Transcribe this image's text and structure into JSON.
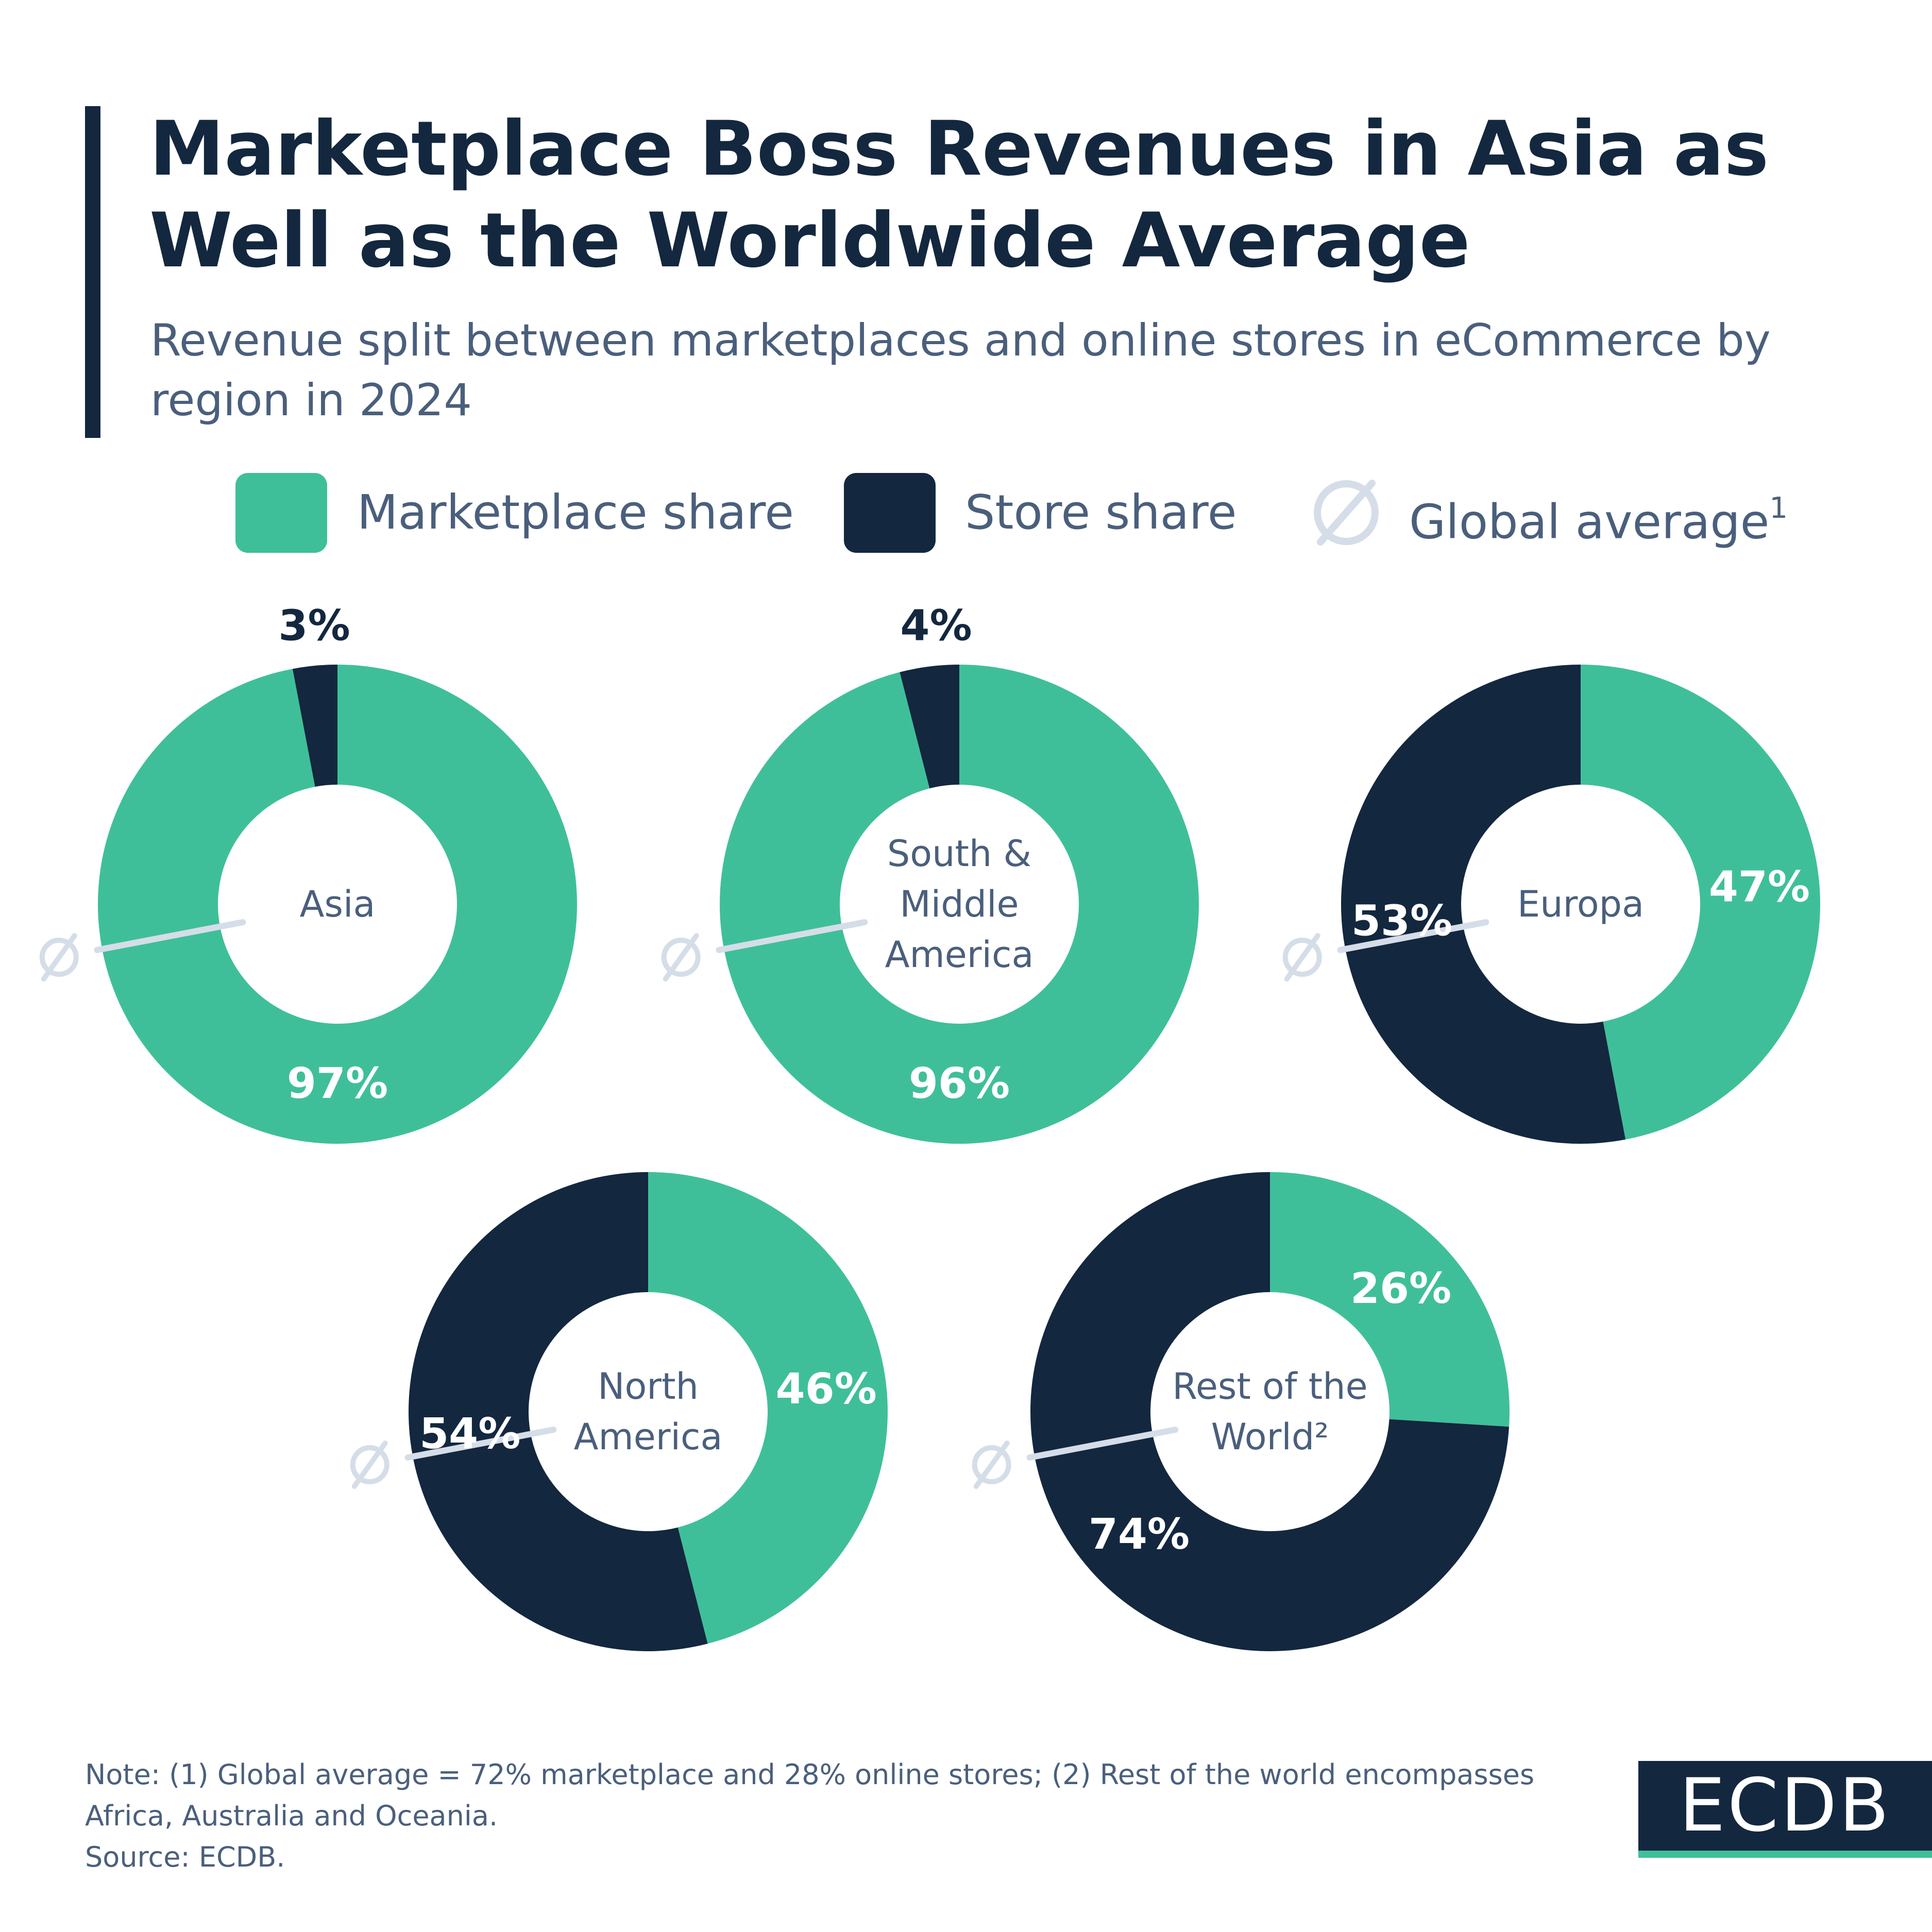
{
  "header": {
    "title": "Marketplace Boss Revenues in Asia as Well as the Worldwide Average",
    "subtitle": "Revenue split between marketplaces and online stores in eCommerce by region in 2024"
  },
  "legend": {
    "marketplace_label": "Marketplace share",
    "store_label": "Store share",
    "average_label": "Global average",
    "average_sup": "1"
  },
  "colors": {
    "marketplace": "#3fbf99",
    "store": "#13273f",
    "average_marker": "#d5dde8",
    "label_dark": "#13273f",
    "label_light": "#ffffff"
  },
  "chart_data": {
    "type": "pie",
    "variant": "donut",
    "series_names": [
      "Marketplace share",
      "Store share"
    ],
    "global_average": {
      "marketplace": 72,
      "store": 28
    },
    "charts": [
      {
        "region": "Asia",
        "marketplace": 97,
        "store": 3,
        "marketplace_label": "97%",
        "store_label": "3%"
      },
      {
        "region": "South & Middle America",
        "marketplace": 96,
        "store": 4,
        "marketplace_label": "96%",
        "store_label": "4%"
      },
      {
        "region": "Europa",
        "marketplace": 47,
        "store": 53,
        "marketplace_label": "47%",
        "store_label": "53%"
      },
      {
        "region": "North America",
        "marketplace": 46,
        "store": 54,
        "marketplace_label": "46%",
        "store_label": "54%"
      },
      {
        "region": "Rest of the World²",
        "marketplace": 26,
        "store": 74,
        "marketplace_label": "26%",
        "store_label": "74%"
      }
    ]
  },
  "footer": {
    "note_line1": "Note: (1) Global average = 72% marketplace and 28% online stores; (2) Rest of the world encompasses",
    "note_line2": "Africa, Australia and Oceania.",
    "source": "Source: ECDB.",
    "logo": "ECDB"
  }
}
